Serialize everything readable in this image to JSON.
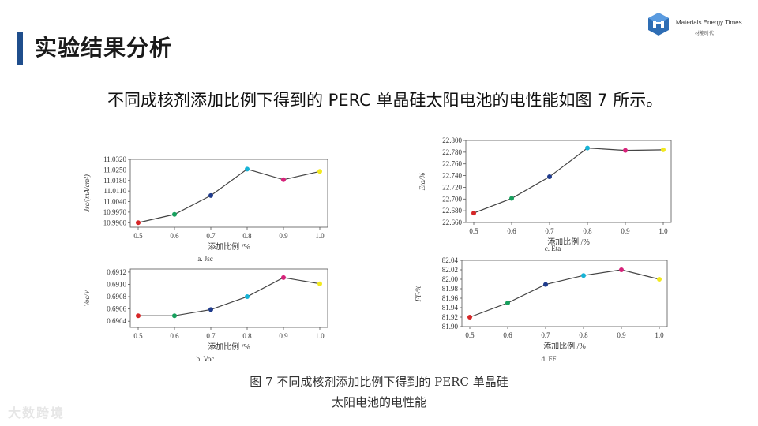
{
  "header": {
    "title": "实验结果分析"
  },
  "brand": {
    "name": "Materials Energy Times",
    "sub": "材能时代"
  },
  "intro": "不同成核剂添加比例下得到的 PERC 单晶硅太阳电池的电性能如图 7 所示。",
  "figure": {
    "caption_line1": "图 7  不同成核剂添加比例下得到的 PERC 单晶硅",
    "caption_line2": "太阳电池的电性能"
  },
  "watermark": "大数跨境",
  "chart_data": [
    {
      "id": "jsc",
      "type": "line",
      "subcaption": "a. Jsc",
      "ylabel": "Jsc/(mA/cm²)",
      "xlabel": "添加比例 /%",
      "x": [
        0.5,
        0.6,
        0.7,
        0.8,
        0.9,
        1.0
      ],
      "xticks": [
        "0.5",
        "0.6",
        "0.7",
        "0.8",
        "0.9",
        "1.0"
      ],
      "values": [
        10.99,
        10.9955,
        11.008,
        11.0255,
        11.0185,
        11.024
      ],
      "ylim": [
        10.987,
        11.032
      ],
      "yticks": [
        "10.9900",
        "10.9970",
        "11.0040",
        "11.0110",
        "11.0180",
        "11.0250",
        "11.0320"
      ],
      "ytick_values": [
        10.99,
        10.997,
        11.004,
        11.011,
        11.018,
        11.025,
        11.032
      ]
    },
    {
      "id": "eta",
      "type": "line",
      "subcaption": "c. Eta",
      "ylabel": "Eta/%",
      "xlabel": "添加比例 /%",
      "x": [
        0.5,
        0.6,
        0.7,
        0.8,
        0.9,
        1.0
      ],
      "xticks": [
        "0.5",
        "0.6",
        "0.7",
        "0.8",
        "0.9",
        "1.0"
      ],
      "values": [
        22.676,
        22.701,
        22.738,
        22.787,
        22.783,
        22.784
      ],
      "ylim": [
        22.66,
        22.8
      ],
      "yticks": [
        "22.660",
        "22.680",
        "22.700",
        "22.720",
        "22.740",
        "22.760",
        "22.780",
        "22.800"
      ],
      "ytick_values": [
        22.66,
        22.68,
        22.7,
        22.72,
        22.74,
        22.76,
        22.78,
        22.8
      ]
    },
    {
      "id": "voc",
      "type": "line",
      "subcaption": "b. Voc",
      "ylabel": "Voc/V",
      "xlabel": "添加比例 /%",
      "x": [
        0.5,
        0.6,
        0.7,
        0.8,
        0.9,
        1.0
      ],
      "xticks": [
        "0.5",
        "0.6",
        "0.7",
        "0.8",
        "0.9",
        "1.0"
      ],
      "values": [
        0.69049,
        0.69049,
        0.69059,
        0.6908,
        0.69111,
        0.69101
      ],
      "ylim": [
        0.6903,
        0.69125
      ],
      "yticks": [
        "0.6904",
        "0.6906",
        "0.6908",
        "0.6910",
        "0.6912"
      ],
      "ytick_values": [
        0.6904,
        0.6906,
        0.6908,
        0.691,
        0.6912
      ]
    },
    {
      "id": "ff",
      "type": "line",
      "subcaption": "d. FF",
      "ylabel": "FF/%",
      "xlabel": "添加比例 /%",
      "x": [
        0.5,
        0.6,
        0.7,
        0.8,
        0.9,
        1.0
      ],
      "xticks": [
        "0.5",
        "0.6",
        "0.7",
        "0.8",
        "0.9",
        "1.0"
      ],
      "values": [
        81.92,
        81.95,
        81.989,
        82.008,
        82.02,
        82.0
      ],
      "ylim": [
        81.9,
        82.04
      ],
      "yticks": [
        "81.90",
        "81.92",
        "81.94",
        "81.96",
        "81.98",
        "82.00",
        "82.02",
        "82.04"
      ],
      "ytick_values": [
        81.9,
        81.92,
        81.94,
        81.96,
        81.98,
        82.0,
        82.02,
        82.04
      ]
    }
  ],
  "colors": {
    "title_bar": "#1f4e8c",
    "line": "#444444",
    "points": [
      "#d62728",
      "#17a05d",
      "#1f3b8c",
      "#17b3d6",
      "#d6227a",
      "#f2e91e"
    ]
  }
}
